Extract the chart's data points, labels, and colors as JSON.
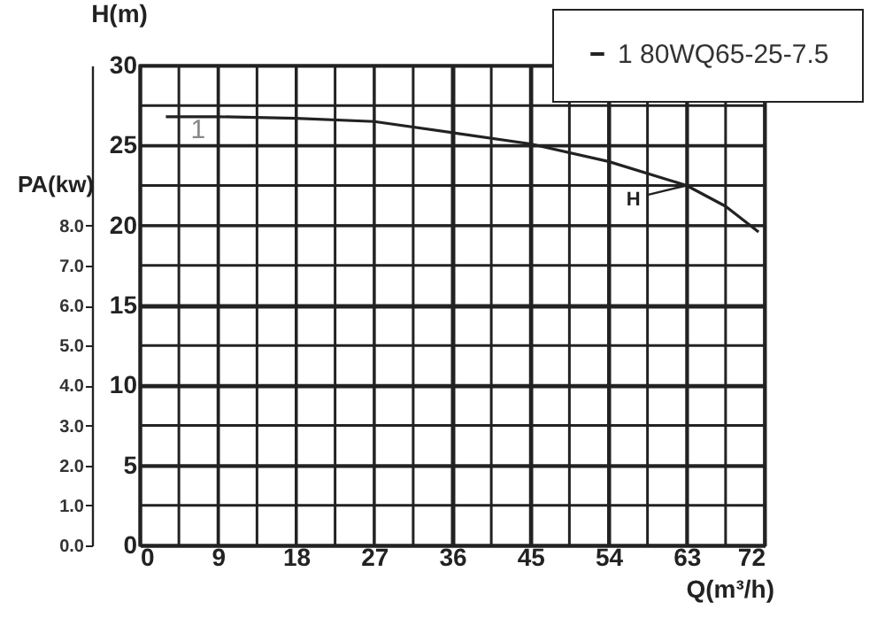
{
  "chart_data": {
    "type": "line",
    "xlabel": "Q(m³/h)",
    "ylabel": "H(m)",
    "y2label": "PA(kw)",
    "x": [
      3,
      9,
      18,
      27,
      36,
      45,
      54,
      63,
      67.5,
      71.3
    ],
    "series": [
      {
        "name": "1 80WQ65-25-7.5",
        "color": "#222222",
        "values": [
          26.8,
          26.8,
          26.7,
          26.5,
          25.8,
          25.1,
          24.0,
          22.5,
          21.2,
          19.6
        ]
      }
    ],
    "xlim": [
      0,
      72
    ],
    "xticks": [
      0,
      {
        "value": 4.5,
        "label": null
      },
      9,
      {
        "value": 13.5,
        "label": null
      },
      18,
      {
        "value": 22.5,
        "label": null
      },
      27,
      {
        "value": 31.5,
        "label": null
      },
      36,
      {
        "value": 40.5,
        "label": null
      },
      45,
      {
        "value": 49.5,
        "label": null
      },
      54,
      {
        "value": 58.5,
        "label": null
      },
      63,
      {
        "value": 67.5,
        "label": null
      },
      72
    ],
    "ylim": [
      0,
      30
    ],
    "yticks": [
      0,
      {
        "value": 2.5,
        "label": null
      },
      5,
      {
        "value": 7.5,
        "label": null
      },
      10,
      {
        "value": 12.5,
        "label": null
      },
      15,
      {
        "value": 17.5,
        "label": null
      },
      20,
      {
        "value": 22.5,
        "label": null
      },
      25,
      {
        "value": 27.5,
        "label": null
      },
      30
    ],
    "y2lim": [
      0,
      12
    ],
    "y2ticks": [
      {
        "value": 0,
        "label": "0.0"
      },
      {
        "value": 1,
        "label": "1.0"
      },
      {
        "value": 2,
        "label": "2.0"
      },
      {
        "value": 3,
        "label": "3.0"
      },
      {
        "value": 4,
        "label": "4.0"
      },
      {
        "value": 5,
        "label": "5.0"
      },
      {
        "value": 6,
        "label": "6.0"
      },
      {
        "value": 7,
        "label": "7.0"
      },
      {
        "value": 8,
        "label": "8.0"
      }
    ],
    "annotations": [
      "1",
      {
        "text": "H",
        "x": 63,
        "y": 22.5
      }
    ],
    "grid": true,
    "legend": "top right",
    "marker": "none",
    "line_style": "solid"
  }
}
